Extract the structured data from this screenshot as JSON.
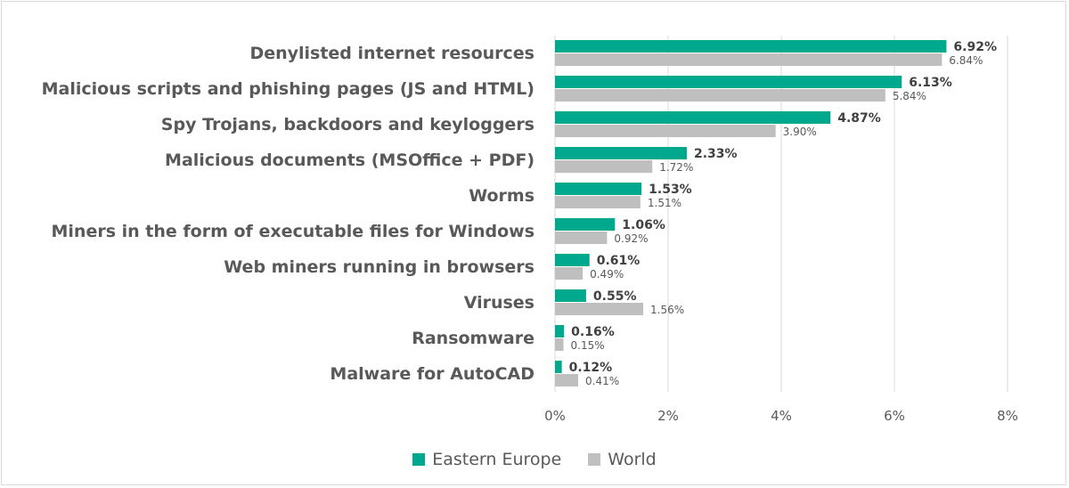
{
  "chart_data": {
    "type": "bar",
    "orientation": "horizontal",
    "categories": [
      "Denylisted internet resources",
      "Malicious scripts and phishing pages (JS and HTML)",
      "Spy Trojans, backdoors and keyloggers",
      "Malicious documents (MSOffice + PDF)",
      "Worms",
      "Miners in the form of executable files for Windows",
      "Web miners running in browsers",
      "Viruses",
      "Ransomware",
      "Malware for AutoCAD"
    ],
    "series": [
      {
        "name": "Eastern Europe",
        "color": "#00a88e",
        "values": [
          6.92,
          6.13,
          4.87,
          2.33,
          1.53,
          1.06,
          0.61,
          0.55,
          0.16,
          0.12
        ],
        "labels": [
          "6.92%",
          "6.13%",
          "4.87%",
          "2.33%",
          "1.53%",
          "1.06%",
          "0.61%",
          "0.55%",
          "0.16%",
          "0.12%"
        ]
      },
      {
        "name": "World",
        "color": "#bfbfbf",
        "values": [
          6.84,
          5.84,
          3.9,
          1.72,
          1.51,
          0.92,
          0.49,
          1.56,
          0.15,
          0.41
        ],
        "labels": [
          "6.84%",
          "5.84%",
          "3.90%",
          "1.72%",
          "1.51%",
          "0.92%",
          "0.49%",
          "1.56%",
          "0.15%",
          "0.41%"
        ]
      }
    ],
    "xlim": [
      0,
      8
    ],
    "xticks": [
      0,
      2,
      4,
      6,
      8
    ],
    "xtick_labels": [
      "0%",
      "2%",
      "4%",
      "6%",
      "8%"
    ],
    "grid": "vertical",
    "legend_position": "bottom"
  }
}
